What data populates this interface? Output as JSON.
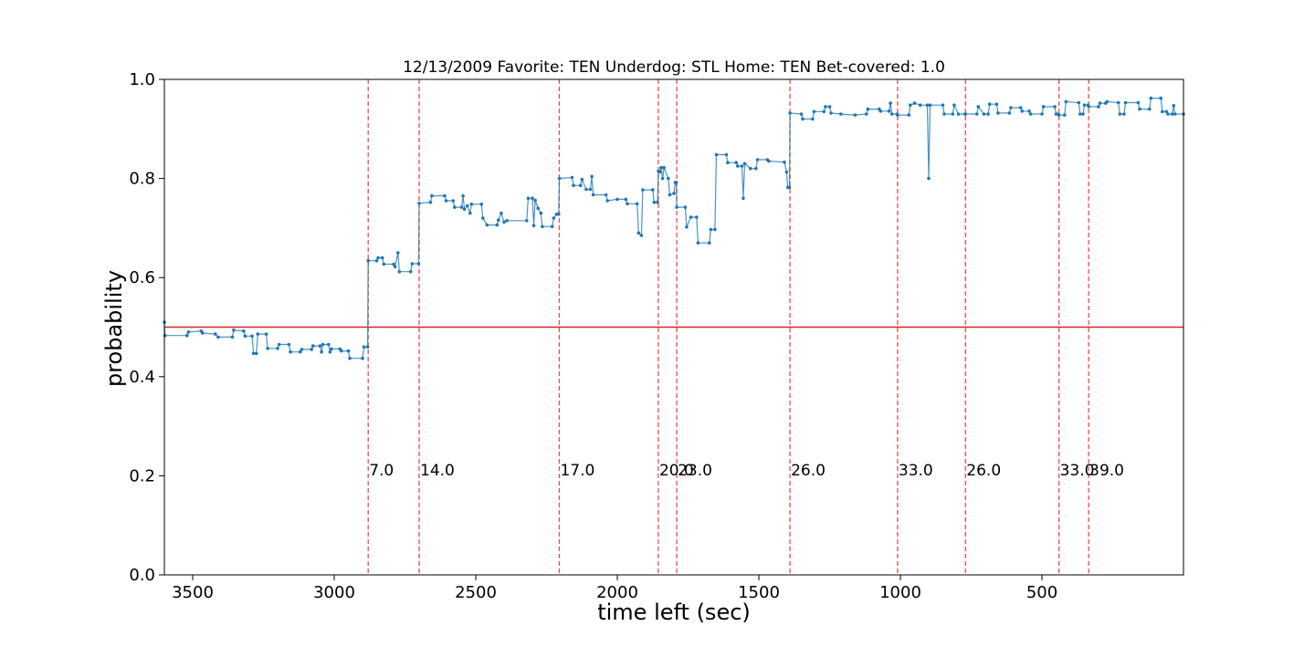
{
  "chart_data": {
    "type": "line",
    "title": "12/13/2009 Favorite: TEN Underdog: STL Home: TEN Bet-covered: 1.0",
    "xlabel": "time left (sec)",
    "ylabel": "probability",
    "xlim": [
      3600,
      0
    ],
    "ylim": [
      0.0,
      1.0
    ],
    "x_ticks": [
      3500,
      3000,
      2500,
      2000,
      1500,
      1000,
      500
    ],
    "y_ticks": [
      0.0,
      0.2,
      0.4,
      0.6,
      0.8,
      1.0
    ],
    "reference_line": {
      "y": 0.5,
      "color": "#d62728"
    },
    "event_lines": [
      {
        "x": 2880,
        "label": "7.0"
      },
      {
        "x": 2700,
        "label": "14.0"
      },
      {
        "x": 2205,
        "label": "17.0"
      },
      {
        "x": 1855,
        "label": "20.0"
      },
      {
        "x": 1790,
        "label": "23.0"
      },
      {
        "x": 1390,
        "label": "26.0"
      },
      {
        "x": 1010,
        "label": "33.0"
      },
      {
        "x": 770,
        "label": "26.0"
      },
      {
        "x": 440,
        "label": "33.0"
      },
      {
        "x": 335,
        "label": "39.0"
      }
    ],
    "series": [
      {
        "color": "#1f77b4",
        "points": [
          [
            3600,
            0.51
          ],
          [
            3598,
            0.483
          ],
          [
            3520,
            0.483
          ],
          [
            3515,
            0.49
          ],
          [
            3470,
            0.492
          ],
          [
            3465,
            0.488
          ],
          [
            3420,
            0.486
          ],
          [
            3410,
            0.48
          ],
          [
            3360,
            0.48
          ],
          [
            3355,
            0.494
          ],
          [
            3320,
            0.492
          ],
          [
            3315,
            0.482
          ],
          [
            3290,
            0.482
          ],
          [
            3285,
            0.447
          ],
          [
            3275,
            0.447
          ],
          [
            3270,
            0.486
          ],
          [
            3240,
            0.486
          ],
          [
            3235,
            0.457
          ],
          [
            3200,
            0.457
          ],
          [
            3195,
            0.465
          ],
          [
            3160,
            0.465
          ],
          [
            3155,
            0.45
          ],
          [
            3120,
            0.45
          ],
          [
            3115,
            0.455
          ],
          [
            3080,
            0.455
          ],
          [
            3075,
            0.462
          ],
          [
            3050,
            0.462
          ],
          [
            3045,
            0.45
          ],
          [
            3040,
            0.465
          ],
          [
            3020,
            0.465
          ],
          [
            3015,
            0.45
          ],
          [
            3010,
            0.456
          ],
          [
            2980,
            0.456
          ],
          [
            2975,
            0.452
          ],
          [
            2950,
            0.452
          ],
          [
            2945,
            0.437
          ],
          [
            2900,
            0.437
          ],
          [
            2895,
            0.46
          ],
          [
            2882,
            0.46
          ],
          [
            2880,
            0.634
          ],
          [
            2850,
            0.634
          ],
          [
            2845,
            0.64
          ],
          [
            2830,
            0.64
          ],
          [
            2825,
            0.627
          ],
          [
            2790,
            0.627
          ],
          [
            2785,
            0.622
          ],
          [
            2775,
            0.65
          ],
          [
            2770,
            0.612
          ],
          [
            2730,
            0.612
          ],
          [
            2725,
            0.628
          ],
          [
            2702,
            0.628
          ],
          [
            2700,
            0.75
          ],
          [
            2660,
            0.752
          ],
          [
            2655,
            0.765
          ],
          [
            2610,
            0.765
          ],
          [
            2605,
            0.755
          ],
          [
            2580,
            0.755
          ],
          [
            2575,
            0.742
          ],
          [
            2550,
            0.742
          ],
          [
            2545,
            0.765
          ],
          [
            2540,
            0.738
          ],
          [
            2530,
            0.745
          ],
          [
            2520,
            0.73
          ],
          [
            2515,
            0.748
          ],
          [
            2480,
            0.748
          ],
          [
            2475,
            0.72
          ],
          [
            2460,
            0.706
          ],
          [
            2425,
            0.706
          ],
          [
            2420,
            0.716
          ],
          [
            2410,
            0.73
          ],
          [
            2400,
            0.712
          ],
          [
            2390,
            0.715
          ],
          [
            2320,
            0.715
          ],
          [
            2315,
            0.76
          ],
          [
            2300,
            0.76
          ],
          [
            2295,
            0.705
          ],
          [
            2290,
            0.756
          ],
          [
            2280,
            0.74
          ],
          [
            2270,
            0.73
          ],
          [
            2265,
            0.703
          ],
          [
            2230,
            0.703
          ],
          [
            2225,
            0.72
          ],
          [
            2215,
            0.728
          ],
          [
            2207,
            0.728
          ],
          [
            2205,
            0.8
          ],
          [
            2160,
            0.802
          ],
          [
            2155,
            0.786
          ],
          [
            2130,
            0.786
          ],
          [
            2125,
            0.798
          ],
          [
            2110,
            0.778
          ],
          [
            2095,
            0.778
          ],
          [
            2090,
            0.804
          ],
          [
            2085,
            0.767
          ],
          [
            2040,
            0.767
          ],
          [
            2035,
            0.755
          ],
          [
            2000,
            0.758
          ],
          [
            1970,
            0.758
          ],
          [
            1965,
            0.749
          ],
          [
            1930,
            0.749
          ],
          [
            1925,
            0.69
          ],
          [
            1915,
            0.685
          ],
          [
            1910,
            0.777
          ],
          [
            1875,
            0.777
          ],
          [
            1870,
            0.752
          ],
          [
            1858,
            0.752
          ],
          [
            1855,
            0.815
          ],
          [
            1850,
            0.813
          ],
          [
            1845,
            0.822
          ],
          [
            1840,
            0.8
          ],
          [
            1835,
            0.822
          ],
          [
            1820,
            0.8
          ],
          [
            1815,
            0.767
          ],
          [
            1800,
            0.77
          ],
          [
            1795,
            0.792
          ],
          [
            1792,
            0.792
          ],
          [
            1790,
            0.742
          ],
          [
            1760,
            0.742
          ],
          [
            1755,
            0.702
          ],
          [
            1740,
            0.722
          ],
          [
            1720,
            0.722
          ],
          [
            1715,
            0.67
          ],
          [
            1675,
            0.67
          ],
          [
            1670,
            0.697
          ],
          [
            1655,
            0.697
          ],
          [
            1650,
            0.848
          ],
          [
            1615,
            0.848
          ],
          [
            1610,
            0.832
          ],
          [
            1580,
            0.832
          ],
          [
            1575,
            0.825
          ],
          [
            1560,
            0.825
          ],
          [
            1555,
            0.76
          ],
          [
            1550,
            0.83
          ],
          [
            1530,
            0.82
          ],
          [
            1510,
            0.82
          ],
          [
            1505,
            0.838
          ],
          [
            1470,
            0.838
          ],
          [
            1465,
            0.835
          ],
          [
            1410,
            0.833
          ],
          [
            1402,
            0.813
          ],
          [
            1398,
            0.782
          ],
          [
            1392,
            0.782
          ],
          [
            1390,
            0.932
          ],
          [
            1350,
            0.93
          ],
          [
            1345,
            0.92
          ],
          [
            1310,
            0.92
          ],
          [
            1305,
            0.935
          ],
          [
            1270,
            0.935
          ],
          [
            1265,
            0.945
          ],
          [
            1250,
            0.945
          ],
          [
            1245,
            0.932
          ],
          [
            1210,
            0.93
          ],
          [
            1160,
            0.928
          ],
          [
            1120,
            0.93
          ],
          [
            1115,
            0.94
          ],
          [
            1075,
            0.94
          ],
          [
            1070,
            0.936
          ],
          [
            1040,
            0.936
          ],
          [
            1035,
            0.952
          ],
          [
            1030,
            0.93
          ],
          [
            1012,
            0.93
          ],
          [
            1010,
            0.928
          ],
          [
            970,
            0.928
          ],
          [
            965,
            0.948
          ],
          [
            950,
            0.952
          ],
          [
            930,
            0.948
          ],
          [
            905,
            0.948
          ],
          [
            900,
            0.8
          ],
          [
            895,
            0.948
          ],
          [
            850,
            0.948
          ],
          [
            845,
            0.93
          ],
          [
            815,
            0.93
          ],
          [
            810,
            0.948
          ],
          [
            795,
            0.93
          ],
          [
            772,
            0.93
          ],
          [
            770,
            0.93
          ],
          [
            730,
            0.93
          ],
          [
            725,
            0.945
          ],
          [
            705,
            0.93
          ],
          [
            690,
            0.93
          ],
          [
            685,
            0.95
          ],
          [
            660,
            0.95
          ],
          [
            655,
            0.932
          ],
          [
            615,
            0.932
          ],
          [
            610,
            0.943
          ],
          [
            575,
            0.943
          ],
          [
            570,
            0.936
          ],
          [
            545,
            0.936
          ],
          [
            540,
            0.93
          ],
          [
            500,
            0.93
          ],
          [
            495,
            0.945
          ],
          [
            455,
            0.945
          ],
          [
            450,
            0.93
          ],
          [
            442,
            0.93
          ],
          [
            440,
            0.928
          ],
          [
            420,
            0.928
          ],
          [
            415,
            0.955
          ],
          [
            370,
            0.953
          ],
          [
            365,
            0.93
          ],
          [
            355,
            0.93
          ],
          [
            350,
            0.948
          ],
          [
            337,
            0.948
          ],
          [
            335,
            0.945
          ],
          [
            300,
            0.945
          ],
          [
            295,
            0.952
          ],
          [
            275,
            0.952
          ],
          [
            270,
            0.955
          ],
          [
            230,
            0.953
          ],
          [
            225,
            0.93
          ],
          [
            210,
            0.93
          ],
          [
            205,
            0.953
          ],
          [
            160,
            0.953
          ],
          [
            155,
            0.94
          ],
          [
            120,
            0.94
          ],
          [
            115,
            0.962
          ],
          [
            80,
            0.962
          ],
          [
            75,
            0.935
          ],
          [
            60,
            0.935
          ],
          [
            55,
            0.93
          ],
          [
            40,
            0.93
          ],
          [
            35,
            0.947
          ],
          [
            30,
            0.93
          ],
          [
            0,
            0.93
          ]
        ]
      }
    ]
  }
}
